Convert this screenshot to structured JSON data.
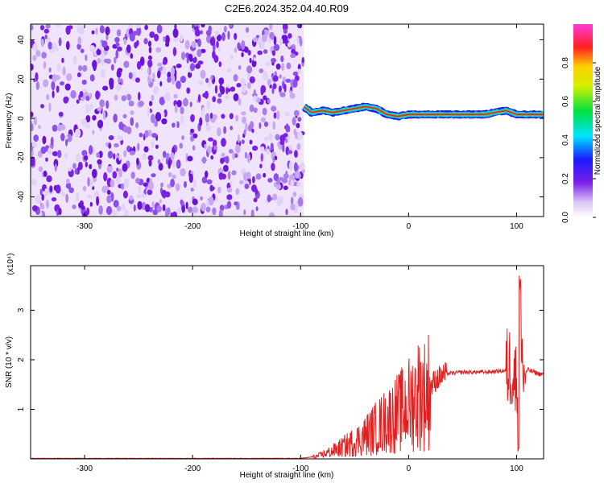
{
  "title": "C2E6.2024.352.04.40.R09",
  "colors": {
    "spectrum_low": "#7a1fe6",
    "spectrum_high": "#e0001a",
    "snr_line": "#e02020"
  },
  "chart_data": [
    {
      "type": "heatmap",
      "title": "C2E6.2024.352.04.40.R09",
      "xlabel": "Height of straight line (km)",
      "ylabel": "Frequency (Hz)",
      "xlim": [
        -350,
        125
      ],
      "ylim": [
        -50,
        48
      ],
      "xticks": [
        -300,
        -200,
        -100,
        0,
        100
      ],
      "yticks": [
        -40,
        -20,
        0,
        20,
        40
      ],
      "noise_region_x": [
        -350,
        -97
      ],
      "signal_trace": {
        "x": [
          -97,
          -90,
          -80,
          -70,
          -60,
          -50,
          -40,
          -30,
          -20,
          -10,
          0,
          10,
          30,
          50,
          70,
          80,
          90,
          100,
          110,
          125
        ],
        "y": [
          6,
          3,
          4,
          3,
          4,
          5,
          6,
          5,
          2,
          1,
          2,
          2,
          2,
          2,
          2,
          3,
          4,
          2,
          2,
          2
        ]
      },
      "colorbar": {
        "label": "Normalized spectral amplitude",
        "range": [
          0,
          1
        ],
        "ticks": [
          "0.0",
          "0.2",
          "0.4",
          "0.6",
          "0.8"
        ]
      }
    },
    {
      "type": "line",
      "xlabel": "Height of straight line (km)",
      "ylabel": "SNR (10 * v/v)",
      "y_multiplier": "(x10⁴)",
      "xlim": [
        -350,
        125
      ],
      "ylim": [
        0,
        3.9
      ],
      "xticks": [
        -300,
        -200,
        -100,
        0,
        100
      ],
      "yticks": [
        1,
        2,
        3
      ],
      "series": [
        {
          "x": [
            -350,
            -100,
            -85,
            -75,
            -65,
            -55,
            -45,
            -35,
            -25,
            -15,
            -5,
            5,
            10,
            15,
            25,
            35,
            50,
            70,
            90,
            95,
            100,
            103,
            106,
            110,
            120,
            125
          ],
          "values": [
            0.01,
            0.01,
            0.05,
            0.12,
            0.2,
            0.3,
            0.4,
            0.55,
            0.7,
            0.85,
            1.0,
            1.2,
            1.35,
            1.3,
            1.6,
            1.72,
            1.75,
            1.75,
            1.78,
            1.9,
            1.5,
            3.8,
            1.6,
            1.8,
            1.72,
            1.7
          ]
        }
      ]
    }
  ]
}
